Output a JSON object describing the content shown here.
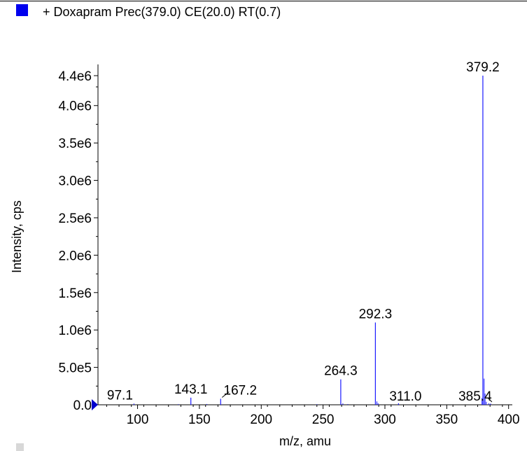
{
  "chart_data": {
    "type": "bar",
    "legend": {
      "label": "+ Doxapram Prec(379.0) CE(20.0) RT(0.7)",
      "color": "#0000ee",
      "position": "top-left"
    },
    "xlabel": "m/z, amu",
    "ylabel": "Intensity, cps",
    "xlim": [
      68,
      403
    ],
    "ylim": [
      0,
      4550000
    ],
    "x_ticks": [
      100,
      150,
      200,
      250,
      300,
      350,
      400
    ],
    "x_tick_labels": [
      "100",
      "150",
      "200",
      "250",
      "300",
      "350",
      "400"
    ],
    "y_ticks": [
      0,
      500000,
      1000000,
      1500000,
      2000000,
      2500000,
      3000000,
      3500000,
      4000000,
      4400000
    ],
    "y_tick_labels": [
      "0.0",
      "5.0e5",
      "1.0e6",
      "1.5e6",
      "2.0e6",
      "2.5e6",
      "3.0e6",
      "3.5e6",
      "4.0e6",
      "4.4e6"
    ],
    "line_color": "#1a1aff",
    "peaks": [
      {
        "x": 97.1,
        "y": 15000,
        "label": "97.1"
      },
      {
        "x": 143.1,
        "y": 95000,
        "label": "143.1"
      },
      {
        "x": 167.2,
        "y": 80000,
        "label": "167.2"
      },
      {
        "x": 264.3,
        "y": 340000,
        "label": "264.3"
      },
      {
        "x": 292.3,
        "y": 1100000,
        "label": "292.3"
      },
      {
        "x": 311.0,
        "y": 20000,
        "label": "311.0"
      },
      {
        "x": 379.2,
        "y": 4400000,
        "label": "379.2"
      },
      {
        "x": 385.4,
        "y": 15000,
        "label": "385.4"
      }
    ],
    "minor_peaks": [
      {
        "x": 133.0,
        "y": 8000
      },
      {
        "x": 156.0,
        "y": 10000
      },
      {
        "x": 245.0,
        "y": 7000
      },
      {
        "x": 266.0,
        "y": 18000
      },
      {
        "x": 270.0,
        "y": 9000
      },
      {
        "x": 293.5,
        "y": 45000
      },
      {
        "x": 294.5,
        "y": 20000
      },
      {
        "x": 378.5,
        "y": 90000
      },
      {
        "x": 380.2,
        "y": 350000
      },
      {
        "x": 381.0,
        "y": 150000
      },
      {
        "x": 382.0,
        "y": 40000
      },
      {
        "x": 384.0,
        "y": 20000
      }
    ]
  }
}
